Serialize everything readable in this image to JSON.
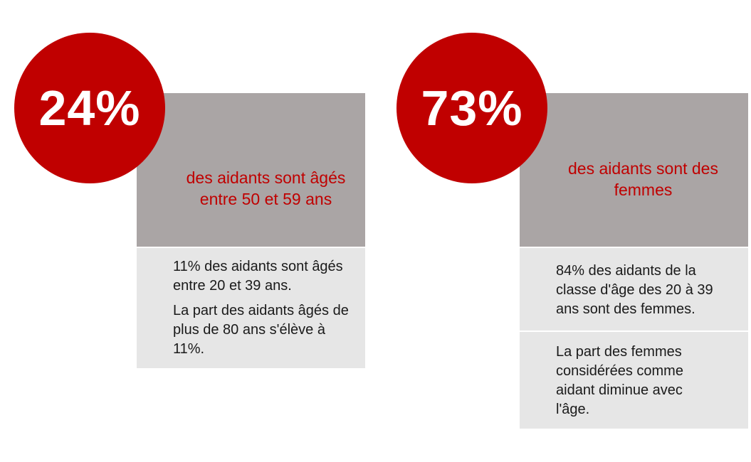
{
  "left_card": {
    "percent": "24%",
    "headline": "des aidants sont âgés entre 50 et 59 ans",
    "detail_1": "11% des aidants sont âgés entre 20 et 39 ans.",
    "detail_2": "La part des aidants âgés de plus de 80 ans s'élève à 11%."
  },
  "right_card": {
    "percent": "73%",
    "headline": "des aidants sont des femmes",
    "detail_1": "84% des aidants de la classe d'âge des 20 à 39 ans sont des  femmes.",
    "detail_2": "La part des femmes considérées comme aidant diminue avec l'âge."
  },
  "colors": {
    "accent": "#c00000",
    "header_gray": "#aaa5a5",
    "detail_gray": "#e6e6e6"
  }
}
